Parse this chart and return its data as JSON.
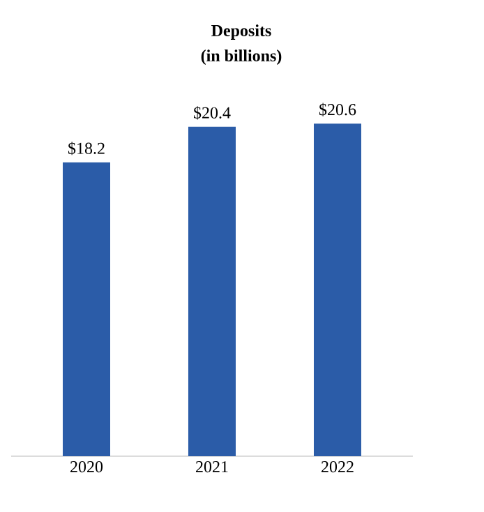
{
  "chart_data": {
    "type": "bar",
    "title": "Deposits",
    "subtitle": "(in billions)",
    "categories": [
      "2020",
      "2021",
      "2022"
    ],
    "values": [
      18.2,
      20.4,
      20.6
    ],
    "value_labels": [
      "$18.2",
      "$20.4",
      "$20.6"
    ],
    "color": "#2b5ca8",
    "tick_labels": "x"
  }
}
